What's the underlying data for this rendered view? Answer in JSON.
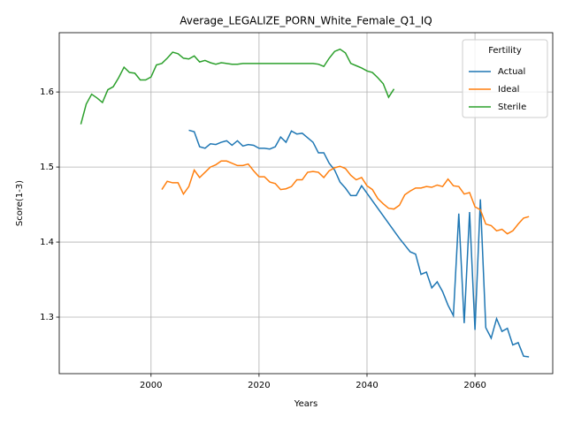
{
  "chart_data": {
    "type": "line",
    "title": "Average_LEGALIZE_PORN_White_Female_Q1_IQ",
    "xlabel": "Years",
    "ylabel": "Score(1-3)",
    "x": [
      1987,
      1988,
      1989,
      1990,
      1991,
      1992,
      1993,
      1994,
      1995,
      1996,
      1997,
      1998,
      1999,
      2000,
      2001,
      2002,
      2003,
      2004,
      2005,
      2006,
      2007,
      2008,
      2009,
      2010,
      2011,
      2012,
      2013,
      2014,
      2015,
      2016,
      2017,
      2018,
      2019,
      2020,
      2021,
      2022,
      2023,
      2024,
      2025,
      2026,
      2027,
      2028,
      2029,
      2030,
      2031,
      2032,
      2033,
      2034,
      2035,
      2036,
      2037,
      2038,
      2039,
      2040,
      2041,
      2042,
      2043,
      2044,
      2045,
      2046,
      2047,
      2048,
      2049,
      2050,
      2051,
      2052,
      2053,
      2054,
      2055,
      2056,
      2057,
      2058,
      2059,
      2060,
      2061,
      2062,
      2063,
      2064,
      2065,
      2066,
      2067,
      2068,
      2069,
      2070
    ],
    "series": [
      {
        "name": "Actual",
        "color": "#1f77b4",
        "values": [
          null,
          null,
          null,
          null,
          null,
          null,
          null,
          null,
          null,
          null,
          null,
          null,
          null,
          null,
          null,
          null,
          null,
          null,
          null,
          null,
          1.549,
          1.547,
          1.527,
          1.525,
          1.531,
          1.53,
          1.533,
          1.535,
          1.529,
          1.535,
          1.528,
          1.53,
          1.529,
          1.525,
          1.525,
          1.524,
          1.527,
          1.54,
          1.533,
          1.548,
          1.544,
          1.545,
          1.539,
          1.533,
          1.519,
          1.519,
          1.505,
          1.496,
          1.48,
          1.472,
          1.462,
          1.462,
          1.475,
          1.465,
          1.455,
          1.445,
          1.435,
          1.425,
          1.415,
          1.405,
          1.396,
          1.387,
          1.384,
          1.357,
          1.36,
          1.339,
          1.347,
          1.334,
          1.316,
          1.302,
          1.438,
          1.292,
          1.44,
          1.283,
          1.457,
          1.286,
          1.272,
          1.298,
          1.281,
          1.285,
          1.263,
          1.266,
          1.248,
          1.247
        ]
      },
      {
        "name": "Ideal",
        "color": "#ff7f0e",
        "values": [
          null,
          null,
          null,
          null,
          null,
          null,
          null,
          null,
          null,
          null,
          null,
          null,
          null,
          null,
          null,
          1.47,
          1.481,
          1.479,
          1.479,
          1.464,
          1.474,
          1.496,
          1.486,
          1.493,
          1.5,
          1.503,
          1.508,
          1.508,
          1.505,
          1.502,
          1.502,
          1.504,
          1.495,
          1.487,
          1.487,
          1.48,
          1.478,
          1.47,
          1.471,
          1.474,
          1.483,
          1.483,
          1.493,
          1.494,
          1.493,
          1.486,
          1.495,
          1.499,
          1.501,
          1.498,
          1.489,
          1.483,
          1.486,
          1.475,
          1.47,
          1.458,
          1.451,
          1.445,
          1.444,
          1.449,
          1.463,
          1.468,
          1.472,
          1.472,
          1.474,
          1.473,
          1.476,
          1.474,
          1.484,
          1.475,
          1.474,
          1.464,
          1.466,
          1.447,
          1.443,
          1.424,
          1.422,
          1.415,
          1.417,
          1.411,
          1.415,
          1.424,
          1.432,
          1.434
        ]
      },
      {
        "name": "Sterile",
        "color": "#2ca02c",
        "values": [
          1.557,
          1.584,
          1.597,
          1.592,
          1.586,
          1.603,
          1.607,
          1.619,
          1.633,
          1.626,
          1.625,
          1.616,
          1.616,
          1.62,
          1.636,
          1.638,
          1.645,
          1.653,
          1.651,
          1.645,
          1.644,
          1.648,
          1.64,
          1.642,
          1.639,
          1.637,
          1.639,
          1.638,
          1.637,
          1.637,
          1.638,
          1.638,
          1.638,
          1.638,
          1.638,
          1.638,
          1.638,
          1.638,
          1.638,
          1.638,
          1.638,
          1.638,
          1.638,
          1.638,
          1.637,
          1.634,
          1.645,
          1.654,
          1.657,
          1.652,
          1.638,
          1.635,
          1.632,
          1.628,
          1.626,
          1.619,
          1.611,
          1.593,
          1.604,
          null,
          null,
          null,
          null,
          null,
          null,
          null,
          null,
          null,
          null,
          null,
          null,
          null,
          null,
          null,
          null,
          null,
          null,
          null,
          null,
          null,
          null,
          null,
          null,
          null
        ]
      }
    ],
    "xlim": [
      1983,
      2074.4
    ],
    "ylim": [
      1.2247,
      1.679
    ],
    "xticks": [
      2000,
      2020,
      2040,
      2060
    ],
    "yticks": [
      1.3,
      1.4,
      1.5,
      1.6
    ],
    "grid": true,
    "legend_title": "Fertility",
    "legend_loc": "upper right"
  }
}
